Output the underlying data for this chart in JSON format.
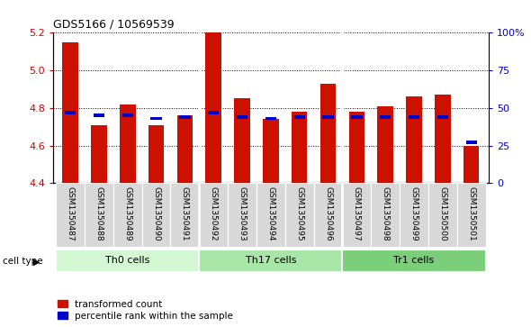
{
  "title": "GDS5166 / 10569539",
  "samples": [
    "GSM1350487",
    "GSM1350488",
    "GSM1350489",
    "GSM1350490",
    "GSM1350491",
    "GSM1350492",
    "GSM1350493",
    "GSM1350494",
    "GSM1350495",
    "GSM1350496",
    "GSM1350497",
    "GSM1350498",
    "GSM1350499",
    "GSM1350500",
    "GSM1350501"
  ],
  "red_values": [
    5.15,
    4.71,
    4.82,
    4.71,
    4.76,
    5.2,
    4.85,
    4.74,
    4.78,
    4.93,
    4.78,
    4.81,
    4.86,
    4.87,
    4.6
  ],
  "blue_values": [
    47,
    45,
    45,
    43,
    44,
    47,
    44,
    43,
    44,
    44,
    44,
    44,
    44,
    44,
    27
  ],
  "ymin": 4.4,
  "ymax": 5.2,
  "yticks": [
    4.4,
    4.6,
    4.8,
    5.0,
    5.2
  ],
  "y2min": 0,
  "y2max": 100,
  "y2ticks": [
    0,
    25,
    50,
    75,
    100
  ],
  "y2ticklabels": [
    "0",
    "25",
    "50",
    "75",
    "100%"
  ],
  "groups": [
    {
      "label": "Th0 cells",
      "start": 0,
      "end": 4,
      "color": "#d4f7d4"
    },
    {
      "label": "Th17 cells",
      "start": 5,
      "end": 9,
      "color": "#a8e6a8"
    },
    {
      "label": "Tr1 cells",
      "start": 10,
      "end": 14,
      "color": "#7bcf7b"
    }
  ],
  "bar_color": "#cc1100",
  "blue_color": "#0000cc",
  "ylabel_color": "#cc0000",
  "y2label_color": "#0000cc",
  "bar_width": 0.55,
  "cell_type_label": "cell type",
  "legend_red": "transformed count",
  "legend_blue": "percentile rank within the sample",
  "group_borders": [
    4.5,
    9.5
  ]
}
